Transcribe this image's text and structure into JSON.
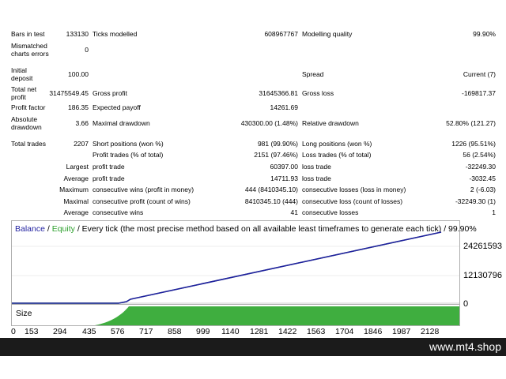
{
  "report": {
    "row1": {
      "bars_label": "Bars in test",
      "bars_value": "133130",
      "ticks_label": "Ticks modelled",
      "ticks_value": "608967767",
      "quality_label": "Modelling quality",
      "quality_value": "99.90%"
    },
    "row2": {
      "mismatch_label_1": "Mismatched",
      "mismatch_label_2": "charts errors",
      "mismatch_value": "0"
    },
    "row3": {
      "deposit_label_1": "Initial",
      "deposit_label_2": "deposit",
      "deposit_value": "100.00",
      "spread_label": "Spread",
      "spread_value": "Current (7)"
    },
    "row4": {
      "net_label_1": "Total net",
      "net_label_2": "profit",
      "net_value": "31475549.45",
      "gross_profit_label": "Gross profit",
      "gross_profit_value": "31645366.81",
      "gross_loss_label": "Gross loss",
      "gross_loss_value": "-169817.37"
    },
    "row5": {
      "pf_label": "Profit factor",
      "pf_value": "186.35",
      "payoff_label": "Expected payoff",
      "payoff_value": "14261.69"
    },
    "row6": {
      "abs_dd_label_1": "Absolute",
      "abs_dd_label_2": "drawdown",
      "abs_dd_value": "3.66",
      "max_dd_label": "Maximal drawdown",
      "max_dd_value": "430300.00 (1.48%)",
      "rel_dd_label": "Relative drawdown",
      "rel_dd_value": "52.80% (121.27)"
    },
    "row7": {
      "trades_label": "Total trades",
      "trades_value": "2207",
      "short_label": "Short positions (won %)",
      "short_value": "981 (99.90%)",
      "long_label": "Long positions (won %)",
      "long_value": "1226 (95.51%)"
    },
    "row8": {
      "profit_trades_label": "Profit trades (% of total)",
      "profit_trades_value": "2151 (97.46%)",
      "loss_trades_label": "Loss trades (% of total)",
      "loss_trades_value": "56 (2.54%)"
    },
    "row9": {
      "prefix": "Largest",
      "profit_label": "profit trade",
      "profit_value": "60397.00",
      "loss_label": "loss trade",
      "loss_value": "-32249.30"
    },
    "row10": {
      "prefix": "Average",
      "profit_label": "profit trade",
      "profit_value": "14711.93",
      "loss_label": "loss trade",
      "loss_value": "-3032.45"
    },
    "row11": {
      "prefix": "Maximum",
      "wins_label": "consecutive wins (profit in money)",
      "wins_value": "444 (8410345.10)",
      "losses_label": "consecutive losses (loss in money)",
      "losses_value": "2 (-6.03)"
    },
    "row12": {
      "prefix": "Maximal",
      "profit_label": "consecutive profit (count of wins)",
      "profit_value": "8410345.10 (444)",
      "loss_label": "consecutive loss (count of losses)",
      "loss_value": "-32249.30 (1)"
    },
    "row13": {
      "prefix": "Average",
      "wins_label": "consecutive wins",
      "wins_value": "41",
      "losses_label": "consecutive losses",
      "losses_value": "1"
    }
  },
  "chart": {
    "title_balance": "Balance",
    "title_sep1": " / ",
    "title_equity": "Equity",
    "title_rest": " / Every tick (the most precise method based on all available least timeframes to generate each tick) / 99.90%",
    "y_labels": [
      "24261593",
      "12130796",
      "0"
    ],
    "x_labels": [
      "0",
      "153",
      "294",
      "435",
      "576",
      "717",
      "858",
      "999",
      "1140",
      "1281",
      "1422",
      "1563",
      "1704",
      "1846",
      "1987",
      "2128"
    ],
    "size_label": "Size",
    "colors": {
      "balance": "#1f1f9f",
      "equity": "#2ea02e",
      "size_fill": "#3fae3f"
    }
  },
  "footer": {
    "site": "www.mt4.shop"
  }
}
